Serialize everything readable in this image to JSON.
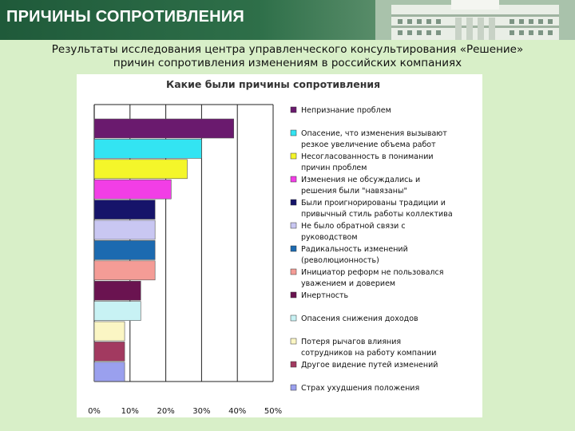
{
  "slide": {
    "title": "ПРИЧИНЫ СОПРОТИВЛЕНИЯ",
    "subtitle_line1": "Результаты исследования центра управленческого консультирования «Решение»",
    "subtitle_line2": "причин сопротивления изменениям в российских компаниях"
  },
  "colors": {
    "background": "#d8efc8",
    "header": "#2e6f49",
    "title_text": "#ffffff",
    "panel": "#ffffff"
  },
  "chart_data": {
    "type": "bar",
    "orientation": "horizontal",
    "title": "Какие были причины сопротивления",
    "xlim": [
      0,
      50
    ],
    "x_ticks": [
      "0%",
      "10%",
      "20%",
      "30%",
      "40%",
      "50%"
    ],
    "grid": true,
    "legend_placement": "right",
    "bars": [
      {
        "label": "Непризнание проблем",
        "value": 39,
        "color": "#6a1a6e"
      },
      {
        "label": "Опасение, что изменения вызывают резкое увеличение объема работ",
        "value": 30,
        "color": "#33e4f2"
      },
      {
        "label": "Несогласованность в понимании причин проблем",
        "value": 26,
        "color": "#f4f62a"
      },
      {
        "label": "Изменения не обсуждались и решения были \"навязаны\"",
        "value": 21.5,
        "color": "#f23ee6"
      },
      {
        "label": "Были проигнорированы традиции и привычный стиль работы коллектива",
        "value": 17,
        "color": "#16146a"
      },
      {
        "label": "Не было обратной связи с руководством",
        "value": 17,
        "color": "#c9c7f2"
      },
      {
        "label": "Радикальность изменений (революционность)",
        "value": 17,
        "color": "#1c6ab0"
      },
      {
        "label": "Инициатор реформ не пользовался уважением и доверием",
        "value": 17,
        "color": "#f49c96"
      },
      {
        "label": "Инертность",
        "value": 13,
        "color": "#6a1350"
      },
      {
        "label": "Опасения снижения доходов",
        "value": 13,
        "color": "#c8f2f4"
      },
      {
        "label": "Потеря рычагов влияния сотрудников на работу компании",
        "value": 8.5,
        "color": "#fbf6c4"
      },
      {
        "label": "Другое видение путей изменений",
        "value": 8.5,
        "color": "#a23a60"
      },
      {
        "label": "Страх ухудшения положения",
        "value": 8.5,
        "color": "#9aa0ee"
      }
    ],
    "legend_lines": [
      [
        "Непризнание проблем"
      ],
      [
        "Опасение, что изменения вызывают",
        "резкое увеличение объема работ"
      ],
      [
        "Несогласованность в понимании",
        "причин проблем"
      ],
      [
        "Изменения не обсуждались и",
        "решения были \"навязаны\""
      ],
      [
        "Были проигнорированы традиции и",
        "привычный стиль работы коллектива"
      ],
      [
        "Не было обратной связи с",
        "руководством"
      ],
      [
        "Радикальность изменений",
        "(революционность)"
      ],
      [
        "Инициатор реформ не пользовался",
        "уважением и доверием"
      ],
      [
        "Инертность"
      ],
      [
        "Опасения снижения доходов"
      ],
      [
        "Потеря рычагов влияния",
        "сотрудников на работу компании"
      ],
      [
        "Другое видение путей изменений"
      ],
      [
        "Страх ухудшения положения"
      ]
    ]
  }
}
